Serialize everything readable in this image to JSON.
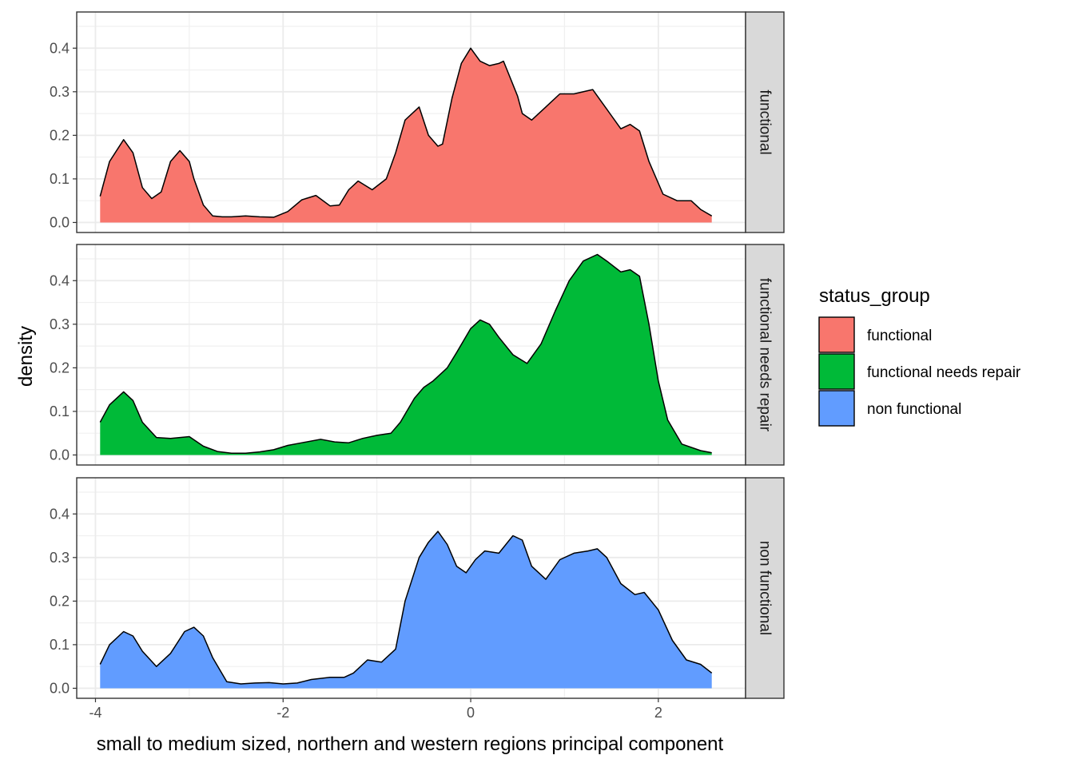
{
  "chart_data": {
    "type": "area",
    "xlabel": "small to medium sized, northern and western regions principal component",
    "ylabel": "density",
    "xlim": [
      -4.2,
      2.93
    ],
    "ylim": [
      -0.023,
      0.483
    ],
    "x_ticks": [
      -4,
      -2,
      0,
      2
    ],
    "x_tick_labels": [
      "-4",
      "-2",
      "0",
      "2"
    ],
    "y_ticks": [
      0.0,
      0.1,
      0.2,
      0.3,
      0.4
    ],
    "y_tick_labels": [
      "0.0",
      "0.1",
      "0.2",
      "0.3",
      "0.4"
    ],
    "grid": true,
    "legend_title": "status_group",
    "legend_position": "right",
    "series": [
      {
        "name": "functional",
        "color": "#F8766D",
        "x": [
          -3.95,
          -3.85,
          -3.7,
          -3.6,
          -3.5,
          -3.4,
          -3.3,
          -3.2,
          -3.1,
          -3.0,
          -2.95,
          -2.85,
          -2.75,
          -2.65,
          -2.55,
          -2.4,
          -2.25,
          -2.1,
          -1.95,
          -1.8,
          -1.65,
          -1.5,
          -1.4,
          -1.3,
          -1.2,
          -1.05,
          -0.9,
          -0.8,
          -0.7,
          -0.55,
          -0.45,
          -0.35,
          -0.3,
          -0.2,
          -0.1,
          0.0,
          0.1,
          0.2,
          0.3,
          0.35,
          0.5,
          0.55,
          0.65,
          0.8,
          0.95,
          1.1,
          1.3,
          1.45,
          1.6,
          1.7,
          1.8,
          1.9,
          2.05,
          2.2,
          2.35,
          2.45,
          2.57
        ],
        "y": [
          0.06,
          0.14,
          0.19,
          0.16,
          0.08,
          0.055,
          0.07,
          0.14,
          0.165,
          0.14,
          0.1,
          0.04,
          0.015,
          0.013,
          0.013,
          0.015,
          0.013,
          0.012,
          0.025,
          0.052,
          0.062,
          0.038,
          0.04,
          0.075,
          0.095,
          0.075,
          0.1,
          0.16,
          0.235,
          0.265,
          0.2,
          0.175,
          0.18,
          0.285,
          0.365,
          0.4,
          0.37,
          0.36,
          0.365,
          0.37,
          0.29,
          0.25,
          0.235,
          0.265,
          0.295,
          0.295,
          0.305,
          0.26,
          0.215,
          0.225,
          0.21,
          0.14,
          0.065,
          0.05,
          0.05,
          0.03,
          0.015
        ]
      },
      {
        "name": "functional needs repair",
        "color": "#00BA38",
        "x": [
          -3.95,
          -3.85,
          -3.7,
          -3.6,
          -3.5,
          -3.35,
          -3.2,
          -3.0,
          -2.85,
          -2.7,
          -2.55,
          -2.4,
          -2.25,
          -2.1,
          -1.95,
          -1.8,
          -1.6,
          -1.45,
          -1.3,
          -1.15,
          -1.0,
          -0.85,
          -0.75,
          -0.6,
          -0.5,
          -0.4,
          -0.25,
          -0.15,
          0.0,
          0.1,
          0.2,
          0.3,
          0.45,
          0.6,
          0.75,
          0.9,
          1.05,
          1.2,
          1.35,
          1.45,
          1.6,
          1.7,
          1.8,
          1.9,
          2.0,
          2.1,
          2.25,
          2.45,
          2.57
        ],
        "y": [
          0.075,
          0.115,
          0.145,
          0.125,
          0.075,
          0.04,
          0.038,
          0.042,
          0.02,
          0.008,
          0.004,
          0.004,
          0.007,
          0.012,
          0.022,
          0.028,
          0.036,
          0.03,
          0.028,
          0.038,
          0.045,
          0.05,
          0.075,
          0.13,
          0.155,
          0.17,
          0.2,
          0.235,
          0.29,
          0.31,
          0.3,
          0.27,
          0.23,
          0.21,
          0.255,
          0.33,
          0.4,
          0.445,
          0.46,
          0.445,
          0.42,
          0.425,
          0.41,
          0.3,
          0.17,
          0.08,
          0.025,
          0.01,
          0.005
        ]
      },
      {
        "name": "non functional",
        "color": "#619CFF",
        "x": [
          -3.95,
          -3.85,
          -3.7,
          -3.6,
          -3.5,
          -3.35,
          -3.2,
          -3.05,
          -2.95,
          -2.85,
          -2.75,
          -2.6,
          -2.45,
          -2.3,
          -2.15,
          -2.0,
          -1.85,
          -1.7,
          -1.5,
          -1.35,
          -1.25,
          -1.1,
          -0.95,
          -0.8,
          -0.7,
          -0.55,
          -0.45,
          -0.35,
          -0.25,
          -0.15,
          -0.05,
          0.05,
          0.15,
          0.3,
          0.45,
          0.55,
          0.65,
          0.8,
          0.95,
          1.1,
          1.25,
          1.35,
          1.45,
          1.6,
          1.75,
          1.85,
          2.0,
          2.15,
          2.3,
          2.45,
          2.57
        ],
        "y": [
          0.055,
          0.1,
          0.13,
          0.12,
          0.085,
          0.05,
          0.08,
          0.13,
          0.14,
          0.12,
          0.07,
          0.015,
          0.01,
          0.012,
          0.013,
          0.01,
          0.012,
          0.02,
          0.025,
          0.025,
          0.035,
          0.065,
          0.06,
          0.09,
          0.2,
          0.3,
          0.335,
          0.36,
          0.33,
          0.28,
          0.265,
          0.295,
          0.315,
          0.31,
          0.35,
          0.34,
          0.28,
          0.25,
          0.295,
          0.31,
          0.315,
          0.32,
          0.3,
          0.24,
          0.215,
          0.22,
          0.18,
          0.11,
          0.065,
          0.055,
          0.035
        ]
      }
    ],
    "panels": [
      "functional",
      "functional needs repair",
      "non functional"
    ]
  }
}
